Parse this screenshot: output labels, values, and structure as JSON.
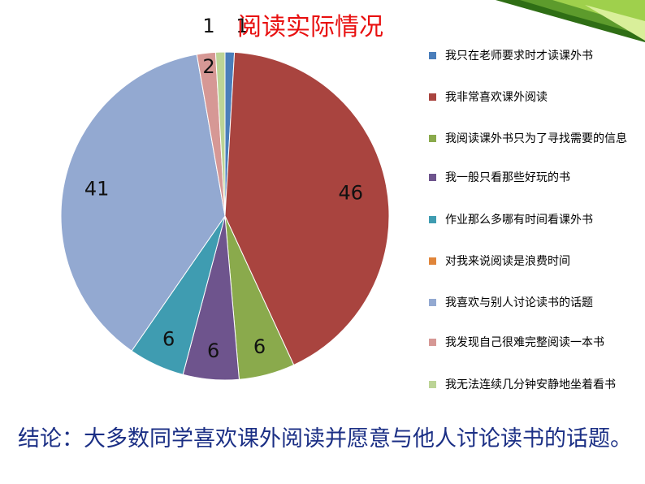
{
  "slide": {
    "title": "阅读实际情况",
    "conclusion": "结论：大多数同学喜欢课外阅读并愿意与他人讨论读书的话题。"
  },
  "chart_data": {
    "type": "pie",
    "title": "阅读实际情况",
    "legend_position": "right",
    "slices": [
      {
        "label": "我只在老师要求时才读课外书",
        "value": 1,
        "color": "#4a7ebb",
        "data_label": "1"
      },
      {
        "label": "我非常喜欢课外阅读",
        "value": 46,
        "color": "#a9443f",
        "data_label": "46"
      },
      {
        "label": "我阅读课外书只为了寻找需要的信息",
        "value": 6,
        "color": "#8aaa4c",
        "data_label": "6"
      },
      {
        "label": "我一般只看那些好玩的书",
        "value": 6,
        "color": "#6e548d",
        "data_label": "6"
      },
      {
        "label": "作业那么多哪有时间看课外书",
        "value": 6,
        "color": "#3f9cb1",
        "data_label": "6"
      },
      {
        "label": "对我来说阅读是浪费时间",
        "value": 0,
        "color": "#e0853a",
        "data_label": ""
      },
      {
        "label": "我喜欢与别人讨论读书的话题",
        "value": 41,
        "color": "#93a9d1",
        "data_label": "41"
      },
      {
        "label": "我发现自己很难完整阅读一本书",
        "value": 2,
        "color": "#d69895",
        "data_label": "2"
      },
      {
        "label": "我无法连续几分钟安静地坐着看书",
        "value": 1,
        "color": "#bcd496",
        "data_label": "1"
      }
    ]
  }
}
